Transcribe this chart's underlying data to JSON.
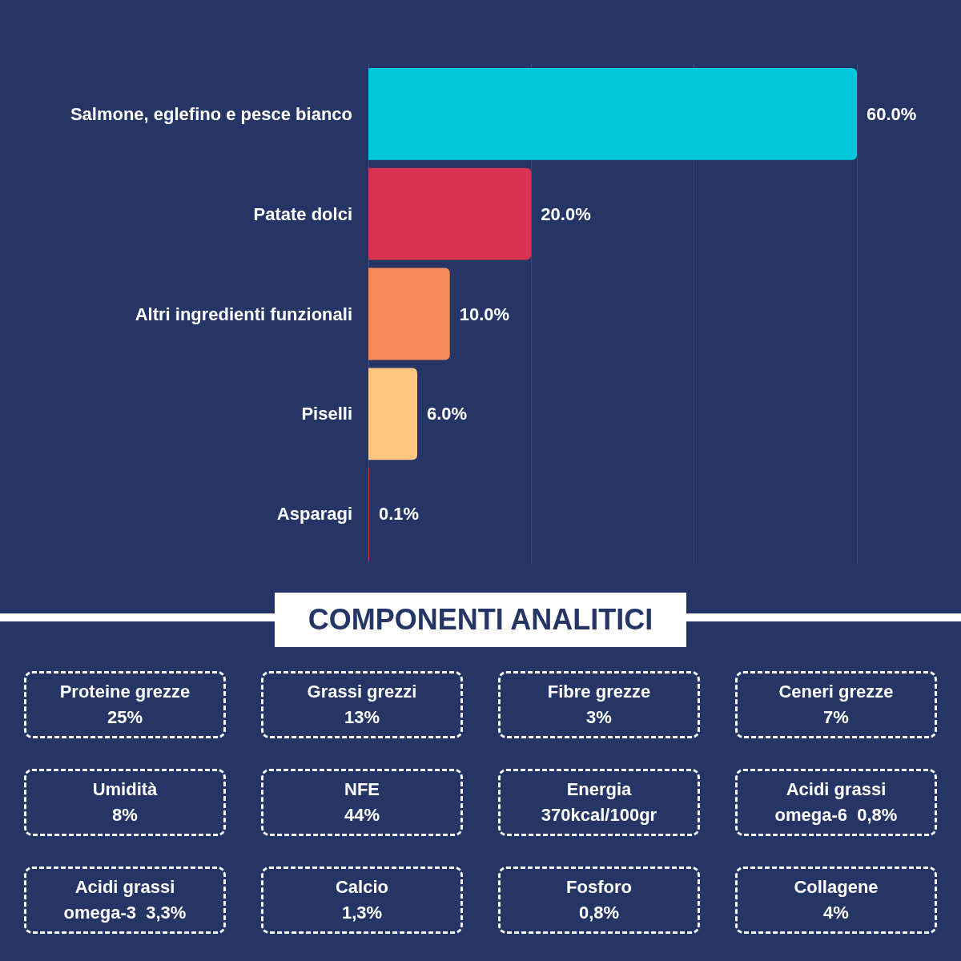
{
  "chart_data": [
    {
      "type": "bar",
      "orientation": "horizontal",
      "categories": [
        "Salmone, eglefino e pesce bianco",
        "Patate dolci",
        "Altri ingredienti funzionali",
        "Piselli",
        "Asparagi"
      ],
      "values": [
        60.0,
        20.0,
        10.0,
        6.0,
        0.1
      ],
      "colors": [
        "#00c8dc",
        "#d93352",
        "#f58a56",
        "#fec57e",
        "#d93352"
      ],
      "value_labels": [
        "60.0%",
        "20.0%",
        "10.0%",
        "6.0%",
        "0.1%"
      ],
      "xlim": [
        0,
        60
      ],
      "xticks": [
        {
          "value": 0,
          "label": null
        },
        {
          "value": 20,
          "label": null
        },
        {
          "value": 40,
          "label": null
        },
        {
          "value": 60,
          "label": null
        }
      ],
      "grid": "x",
      "tick_labels": "y"
    },
    {
      "type": "other",
      "title": "COMPONENTI ANALITICI",
      "annotations": [
        "Proteine grezze\n25%",
        "Grassi grezzi\n13%",
        "Fibre grezze\n3%",
        "Ceneri grezze\n7%",
        "Umidità\n8%",
        "NFE\n44%",
        "Energia\n370kcal/100gr",
        "Acidi grassi\nomega-6  0,8%",
        "Acidi grassi\nomega-3  3,3%",
        "Calcio\n1,3%",
        "Fosforo\n0,8%",
        "Collagene\n4%"
      ]
    }
  ]
}
